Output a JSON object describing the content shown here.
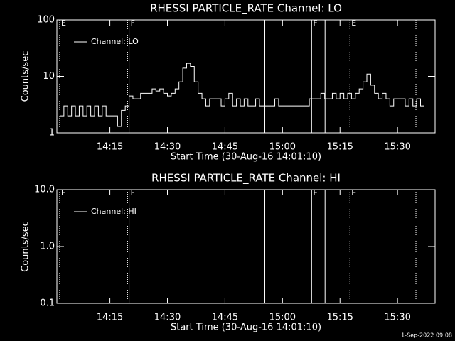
{
  "chart_data": [
    {
      "type": "line",
      "title": "RHESSI PARTICLE_RATE Channel: LO",
      "xlabel": "Start Time (30-Aug-16 14:01:10)",
      "ylabel": "Counts/sec",
      "x": [
        842,
        843,
        844,
        845,
        846,
        847,
        848,
        849,
        850,
        851,
        852,
        853,
        854,
        855,
        856,
        857,
        858,
        859,
        860,
        861,
        862,
        863,
        864,
        865,
        866,
        867,
        868,
        869,
        870,
        871,
        872,
        873,
        874,
        875,
        876,
        877,
        878,
        879,
        880,
        881,
        882,
        883,
        884,
        885,
        886,
        887,
        888,
        889,
        890,
        891,
        892,
        893,
        894,
        895,
        896,
        897,
        898,
        899,
        900,
        901,
        902,
        903,
        904,
        905,
        906,
        907,
        908,
        909,
        910,
        911,
        912,
        913,
        914,
        915,
        916,
        917,
        918,
        919,
        920,
        921,
        922,
        923,
        924,
        925,
        926,
        927,
        928,
        929,
        930,
        931,
        932,
        933,
        934,
        935,
        936,
        937
      ],
      "series": [
        {
          "name": "Channel: LO",
          "color": "#ffffff",
          "values": [
            2,
            3,
            2,
            3,
            2,
            3,
            2,
            3,
            2,
            3,
            2,
            3,
            2,
            2,
            2,
            1.3,
            2.5,
            3,
            4.5,
            4,
            4,
            5,
            5,
            5,
            6,
            5.5,
            6,
            5,
            4.5,
            5,
            6,
            8,
            14,
            17,
            15,
            8,
            5,
            4,
            3,
            4,
            4,
            4,
            3,
            4,
            5,
            3,
            4,
            3,
            4,
            3,
            3,
            4,
            3,
            3,
            3,
            3,
            4,
            3,
            3,
            3,
            3,
            3,
            3,
            3,
            3,
            4,
            4,
            4,
            5,
            4,
            4,
            5,
            4,
            5,
            4,
            5,
            4,
            5,
            6,
            8,
            11,
            7,
            5,
            4,
            5,
            4,
            3,
            4,
            4,
            4,
            3,
            4,
            3,
            4,
            3,
            3
          ]
        }
      ],
      "xlim": [
        841.17,
        939.8
      ],
      "ylim": [
        1,
        100
      ],
      "log_y": true,
      "xticks": [
        {
          "value": 855,
          "label": "14:15"
        },
        {
          "value": 870,
          "label": "14:30"
        },
        {
          "value": 885,
          "label": "14:45"
        },
        {
          "value": 900,
          "label": "15:00"
        },
        {
          "value": 915,
          "label": "15:15"
        },
        {
          "value": 930,
          "label": "15:30"
        }
      ],
      "yticks": [
        1,
        10,
        100
      ],
      "annotations": [
        {
          "x": 841.9,
          "label": "E",
          "style": "dotted"
        },
        {
          "x": 859.6,
          "style": "dotted"
        },
        {
          "x": 860,
          "label": "F",
          "style": "solid"
        },
        {
          "x": 895.4,
          "style": "solid"
        },
        {
          "x": 907.6,
          "label": "F",
          "style": "solid"
        },
        {
          "x": 911.1,
          "style": "solid"
        },
        {
          "x": 917.6,
          "label": "E",
          "style": "dotted"
        },
        {
          "x": 934.8,
          "style": "dotted"
        }
      ]
    },
    {
      "type": "line",
      "title": "RHESSI PARTICLE_RATE Channel: HI",
      "xlabel": "Start Time (30-Aug-16 14:01:10)",
      "ylabel": "Counts/sec",
      "x": [],
      "series": [
        {
          "name": "Channel: HI",
          "color": "#ffffff",
          "values": []
        }
      ],
      "xlim": [
        841.17,
        939.8
      ],
      "ylim": [
        0.1,
        10
      ],
      "log_y": true,
      "xticks": [
        {
          "value": 855,
          "label": "14:15"
        },
        {
          "value": 870,
          "label": "14:30"
        },
        {
          "value": 885,
          "label": "14:45"
        },
        {
          "value": 900,
          "label": "15:00"
        },
        {
          "value": 915,
          "label": "15:15"
        },
        {
          "value": 930,
          "label": "15:30"
        }
      ],
      "yticks": [
        {
          "value": 0.1,
          "label": "0.1"
        },
        {
          "value": 1,
          "label": "1.0"
        },
        {
          "value": 10,
          "label": "10.0"
        }
      ],
      "annotations": [
        {
          "x": 841.9,
          "label": "E",
          "style": "dotted"
        },
        {
          "x": 859.6,
          "style": "dotted"
        },
        {
          "x": 860,
          "label": "F",
          "style": "solid"
        },
        {
          "x": 895.4,
          "style": "solid"
        },
        {
          "x": 907.6,
          "label": "F",
          "style": "solid"
        },
        {
          "x": 911.1,
          "style": "solid"
        },
        {
          "x": 917.6,
          "label": "E",
          "style": "dotted"
        },
        {
          "x": 934.8,
          "style": "dotted"
        }
      ]
    }
  ],
  "footer": "1-Sep-2022 09:08"
}
